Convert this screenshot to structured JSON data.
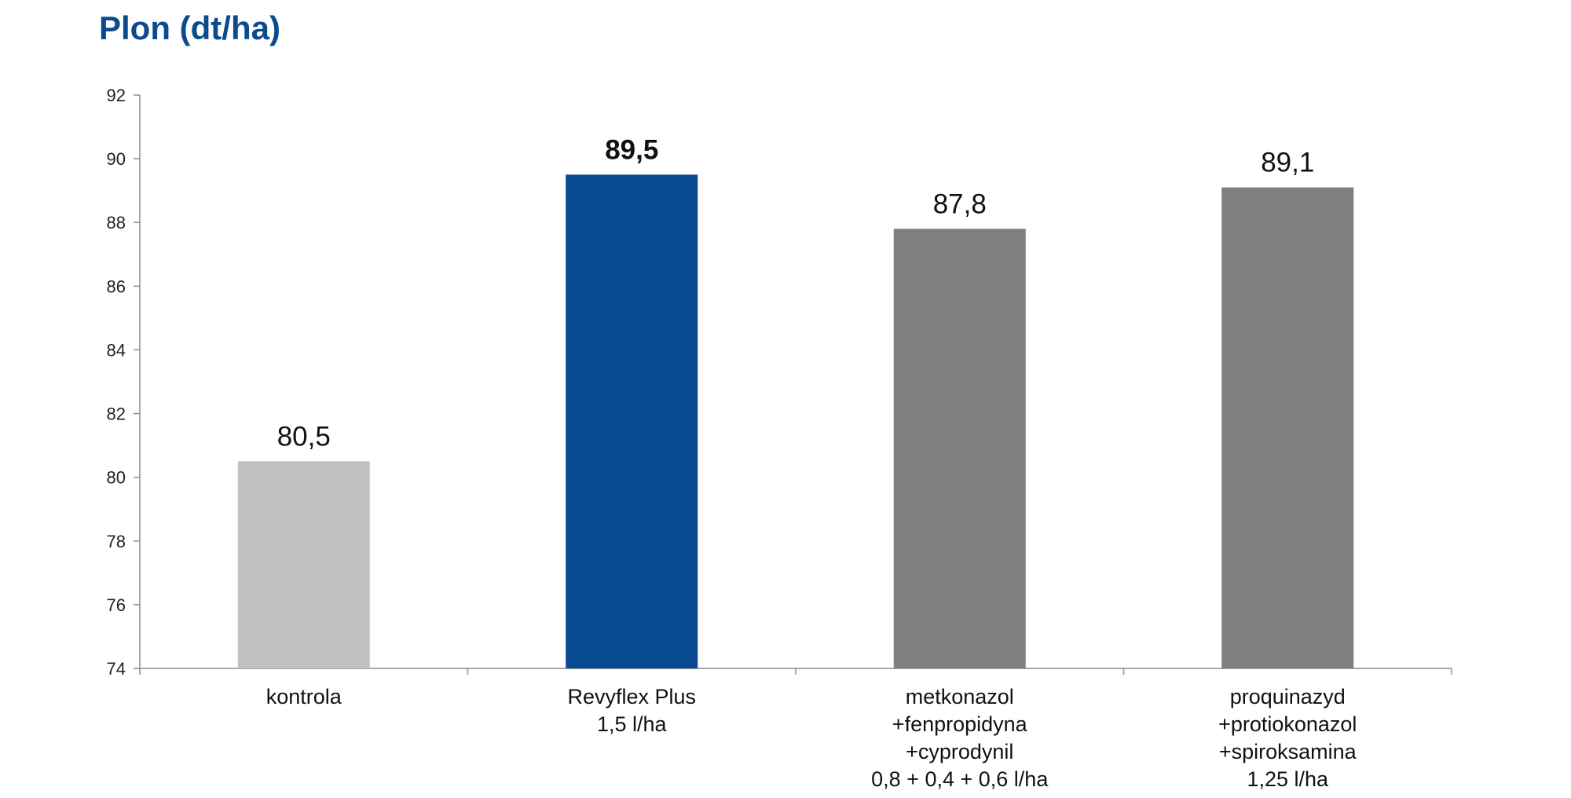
{
  "chart_data": {
    "type": "bar",
    "title": "Plon (dt/ha)",
    "xlabel": "",
    "ylabel": "",
    "ylim": [
      74,
      92
    ],
    "yticks": [
      74,
      76,
      78,
      80,
      82,
      84,
      86,
      88,
      90,
      92
    ],
    "grid": false,
    "legend": "none",
    "categories": [
      [
        "kontrola"
      ],
      [
        "Revyflex Plus",
        "1,5 l/ha"
      ],
      [
        "metkonazol",
        "+fenpropidyna",
        "+cyprodynil",
        "0,8 + 0,4 + 0,6 l/ha"
      ],
      [
        "proquinazyd",
        "+protiokonazol",
        "+spiroksamina",
        "1,25 l/ha"
      ]
    ],
    "values": [
      80.5,
      89.5,
      87.8,
      89.1
    ],
    "value_labels": [
      "80,5",
      "89,5",
      "87,8",
      "89,1"
    ],
    "value_label_bold": [
      false,
      true,
      false,
      false
    ],
    "bar_colors": [
      "#c0c0c0",
      "#074a92",
      "#7f7f7f",
      "#7f7f7f"
    ],
    "axis_color": "#8c8c8c"
  }
}
